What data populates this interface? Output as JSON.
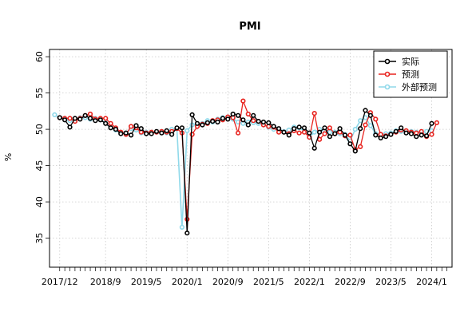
{
  "chart_data": {
    "type": "line",
    "title": "PMI",
    "xlabel": "",
    "ylabel": "%",
    "ylim": [
      31,
      61
    ],
    "yticks": [
      35,
      40,
      45,
      50,
      55,
      60
    ],
    "xtick_labels": [
      "2017/12",
      "2018/9",
      "2019/5",
      "2020/1",
      "2020/9",
      "2021/5",
      "2022/1",
      "2022/9",
      "2023/5",
      "2024/1"
    ],
    "x_start": "2017/10",
    "x_end": "2024/5",
    "grid": true,
    "legend_position": "top-right",
    "series": [
      {
        "name": "实际",
        "color": "#000000",
        "start": "2017/12",
        "values": [
          51.6,
          51.3,
          50.3,
          51.5,
          51.4,
          51.9,
          51.5,
          51.2,
          51.3,
          50.8,
          50.2,
          50.0,
          49.4,
          49.5,
          49.2,
          50.5,
          50.1,
          49.4,
          49.4,
          49.7,
          49.5,
          49.8,
          49.3,
          50.2,
          50.2,
          35.7,
          52.0,
          50.8,
          50.6,
          50.9,
          51.1,
          51.0,
          51.5,
          51.4,
          52.1,
          51.9,
          51.3,
          50.6,
          51.9,
          51.1,
          51.0,
          50.9,
          50.4,
          50.1,
          49.6,
          49.2,
          50.1,
          50.3,
          50.2,
          49.5,
          47.4,
          49.6,
          50.2,
          49.0,
          49.4,
          50.1,
          49.2,
          48.0,
          47.0,
          50.1,
          52.6,
          51.9,
          49.2,
          48.8,
          49.0,
          49.3,
          49.7,
          50.2,
          49.5,
          49.4,
          49.0,
          49.2,
          49.1,
          50.8
        ],
        "show_until_index": 75
      },
      {
        "name": "预测",
        "color": "#e8241f",
        "start": "2017/12",
        "values": [
          51.6,
          51.5,
          51.5,
          51.1,
          51.5,
          51.9,
          52.1,
          51.4,
          51.5,
          51.5,
          50.8,
          50.2,
          49.6,
          49.3,
          50.4,
          50.2,
          49.6,
          49.5,
          49.6,
          49.6,
          49.7,
          49.6,
          49.7,
          50.1,
          49.5,
          37.6,
          49.3,
          50.4,
          50.7,
          50.8,
          51.2,
          51.3,
          51.3,
          51.7,
          51.6,
          49.5,
          53.9,
          52.1,
          51.2,
          51.1,
          50.6,
          50.4,
          50.3,
          49.6,
          49.6,
          49.4,
          49.8,
          49.5,
          49.6,
          48.9,
          52.2,
          48.6,
          49.4,
          50.2,
          49.4,
          49.6,
          49.1,
          49.2,
          47.2,
          47.6,
          50.6,
          52.3,
          51.4,
          49.3,
          49.1,
          49.3,
          49.6,
          49.9,
          49.8,
          49.6,
          49.5,
          49.7,
          49.0,
          49.3,
          50.9
        ]
      },
      {
        "name": "外部预测",
        "color": "#8fd9ea",
        "start": "2017/11",
        "values": [
          52.0,
          51.6,
          51.5,
          51.2,
          51.3,
          51.6,
          51.6,
          51.4,
          51.5,
          51.3,
          50.9,
          50.3,
          49.9,
          49.4,
          49.5,
          50.1,
          49.9,
          49.5,
          49.6,
          49.5,
          49.6,
          49.7,
          49.5,
          50.0,
          50.1,
          36.5,
          49.8,
          50.6,
          50.6,
          50.8,
          51.2,
          51.0,
          51.4,
          51.6,
          51.7,
          51.4,
          51.0,
          50.8,
          51.0,
          50.9,
          50.8,
          50.6,
          50.3,
          50.0,
          50.0,
          49.7,
          49.9,
          50.3,
          50.2,
          49.8,
          48.9,
          49.6,
          50.0,
          49.8,
          49.6,
          49.6,
          49.4,
          49.3,
          48.4,
          50.0,
          51.2,
          51.6,
          50.5,
          49.4,
          49.3,
          49.4,
          49.5,
          49.8,
          49.7,
          49.6,
          49.7,
          49.6,
          49.5,
          49.7,
          49.8
        ]
      }
    ]
  }
}
